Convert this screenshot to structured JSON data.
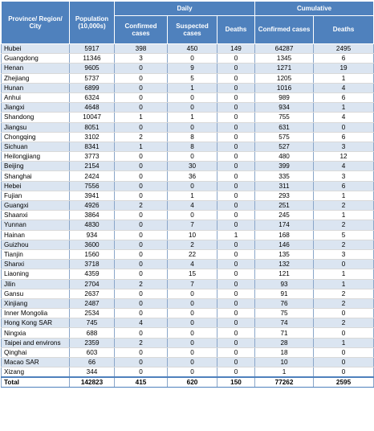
{
  "table": {
    "header": {
      "region": "Province/ Region/ City",
      "population": "Population (10,000s)",
      "daily_group": "Daily",
      "cumulative_group": "Cumulative",
      "daily_confirmed": "Confirmed cases",
      "daily_suspected": "Suspected cases",
      "daily_deaths": "Deaths",
      "cum_confirmed": "Confirmed cases",
      "cum_deaths": "Deaths"
    },
    "rows": [
      [
        "Hubei",
        "5917",
        "398",
        "450",
        "149",
        "64287",
        "2495"
      ],
      [
        "Guangdong",
        "11346",
        "3",
        "0",
        "0",
        "1345",
        "6"
      ],
      [
        "Henan",
        "9605",
        "0",
        "9",
        "0",
        "1271",
        "19"
      ],
      [
        "Zhejiang",
        "5737",
        "0",
        "5",
        "0",
        "1205",
        "1"
      ],
      [
        "Hunan",
        "6899",
        "0",
        "1",
        "0",
        "1016",
        "4"
      ],
      [
        "Anhui",
        "6324",
        "0",
        "0",
        "0",
        "989",
        "6"
      ],
      [
        "Jiangxi",
        "4648",
        "0",
        "0",
        "0",
        "934",
        "1"
      ],
      [
        "Shandong",
        "10047",
        "1",
        "1",
        "0",
        "755",
        "4"
      ],
      [
        "Jiangsu",
        "8051",
        "0",
        "0",
        "0",
        "631",
        "0"
      ],
      [
        "Chongqing",
        "3102",
        "2",
        "8",
        "0",
        "575",
        "6"
      ],
      [
        "Sichuan",
        "8341",
        "1",
        "8",
        "0",
        "527",
        "3"
      ],
      [
        "Heilongjiang",
        "3773",
        "0",
        "0",
        "0",
        "480",
        "12"
      ],
      [
        "Beijing",
        "2154",
        "0",
        "30",
        "0",
        "399",
        "4"
      ],
      [
        "Shanghai",
        "2424",
        "0",
        "36",
        "0",
        "335",
        "3"
      ],
      [
        "Hebei",
        "7556",
        "0",
        "0",
        "0",
        "311",
        "6"
      ],
      [
        "Fujian",
        "3941",
        "0",
        "1",
        "0",
        "293",
        "1"
      ],
      [
        "Guangxi",
        "4926",
        "2",
        "4",
        "0",
        "251",
        "2"
      ],
      [
        "Shaanxi",
        "3864",
        "0",
        "0",
        "0",
        "245",
        "1"
      ],
      [
        "Yunnan",
        "4830",
        "0",
        "7",
        "0",
        "174",
        "2"
      ],
      [
        "Hainan",
        "934",
        "0",
        "10",
        "1",
        "168",
        "5"
      ],
      [
        "Guizhou",
        "3600",
        "0",
        "2",
        "0",
        "146",
        "2"
      ],
      [
        "Tianjin",
        "1560",
        "0",
        "22",
        "0",
        "135",
        "3"
      ],
      [
        "Shanxi",
        "3718",
        "0",
        "4",
        "0",
        "132",
        "0"
      ],
      [
        "Liaoning",
        "4359",
        "0",
        "15",
        "0",
        "121",
        "1"
      ],
      [
        "Jilin",
        "2704",
        "2",
        "7",
        "0",
        "93",
        "1"
      ],
      [
        "Gansu",
        "2637",
        "0",
        "0",
        "0",
        "91",
        "2"
      ],
      [
        "Xinjiang",
        "2487",
        "0",
        "0",
        "0",
        "76",
        "2"
      ],
      [
        "Inner Mongolia",
        "2534",
        "0",
        "0",
        "0",
        "75",
        "0"
      ],
      [
        "Hong Kong SAR",
        "745",
        "4",
        "0",
        "0",
        "74",
        "2"
      ],
      [
        "Ningxia",
        "688",
        "0",
        "0",
        "0",
        "71",
        "0"
      ],
      [
        "Taipei and environs",
        "2359",
        "2",
        "0",
        "0",
        "28",
        "1"
      ],
      [
        "Qinghai",
        "603",
        "0",
        "0",
        "0",
        "18",
        "0"
      ],
      [
        "Macao SAR",
        "66",
        "0",
        "0",
        "0",
        "10",
        "0"
      ],
      [
        "Xizang",
        "344",
        "0",
        "0",
        "0",
        "1",
        "0"
      ]
    ],
    "total": [
      "Total",
      "142823",
      "415",
      "620",
      "150",
      "77262",
      "2595"
    ]
  },
  "colors": {
    "header_fill": "#4f81bd",
    "header_text": "#ffffff",
    "band_fill": "#dbe5f1"
  }
}
